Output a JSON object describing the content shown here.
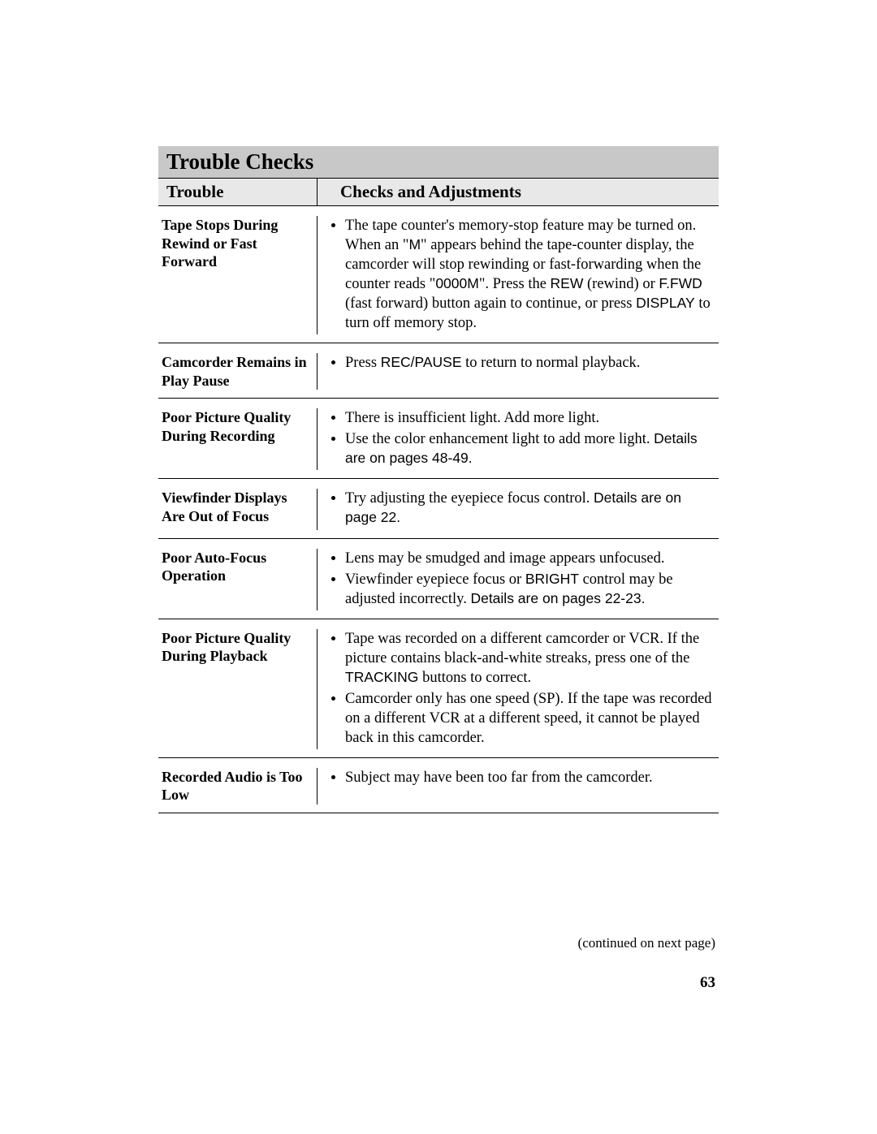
{
  "section_title": "Trouble Checks",
  "columns": {
    "left": "Trouble",
    "right": "Checks and Adjustments"
  },
  "rows": [
    {
      "trouble": "Tape Stops During Rewind or Fast Forward",
      "checks": [
        {
          "pre": "The tape counter's memory-stop feature may be turned on.  When an \"",
          "s1": "M",
          "mid1": "\" appears behind the tape-counter display, the camcorder will stop rewinding or fast-forwarding when the counter reads \"",
          "s2": "0000M",
          "mid2": "\". Press the ",
          "s3": "REW",
          "mid3": " (rewind) or ",
          "s4": "F.FWD",
          "mid4": " (fast forward) button again to continue, or press ",
          "s5": "DISPLAY",
          "post": " to turn off memory stop."
        }
      ]
    },
    {
      "trouble": "Camcorder Remains in Play Pause",
      "checks": [
        {
          "pre": "Press ",
          "s1": "REC/PAUSE",
          "post": " to return to normal playback."
        }
      ]
    },
    {
      "trouble": "Poor Picture Quality During Recording",
      "checks": [
        {
          "pre": "There is insufficient light.  Add more light."
        },
        {
          "pre": "Use the color enhancement light to add more light. ",
          "s1": "Details are on pages 48-49."
        }
      ]
    },
    {
      "trouble": "Viewfinder Displays Are Out of Focus",
      "checks": [
        {
          "pre": "Try adjusting the eyepiece focus control.  ",
          "s1": "Details are on page 22."
        }
      ]
    },
    {
      "trouble": "Poor Auto-Focus Operation",
      "checks": [
        {
          "pre": "Lens may be smudged and image appears unfocused."
        },
        {
          "pre": "Viewfinder eyepiece focus or ",
          "s1": "BRIGHT",
          "mid1": " control may be adjusted incorrectly.  ",
          "s2": "Details are on pages 22-23."
        }
      ]
    },
    {
      "trouble": "Poor Picture Quality During Playback",
      "checks": [
        {
          "pre": "Tape was recorded on a different camcorder or VCR. If the picture contains black-and-white streaks, press one of the ",
          "s1": "TRACKING",
          "post": " buttons to correct."
        },
        {
          "pre": "Camcorder only has one speed (SP).  If the tape was recorded on a different VCR at a different speed, it cannot be played back in this camcorder."
        }
      ]
    },
    {
      "trouble": "Recorded Audio is Too Low",
      "checks": [
        {
          "pre": "Subject may have been too far from the camcorder."
        }
      ]
    }
  ],
  "continued": "(continued on next page)",
  "page_number": "63"
}
